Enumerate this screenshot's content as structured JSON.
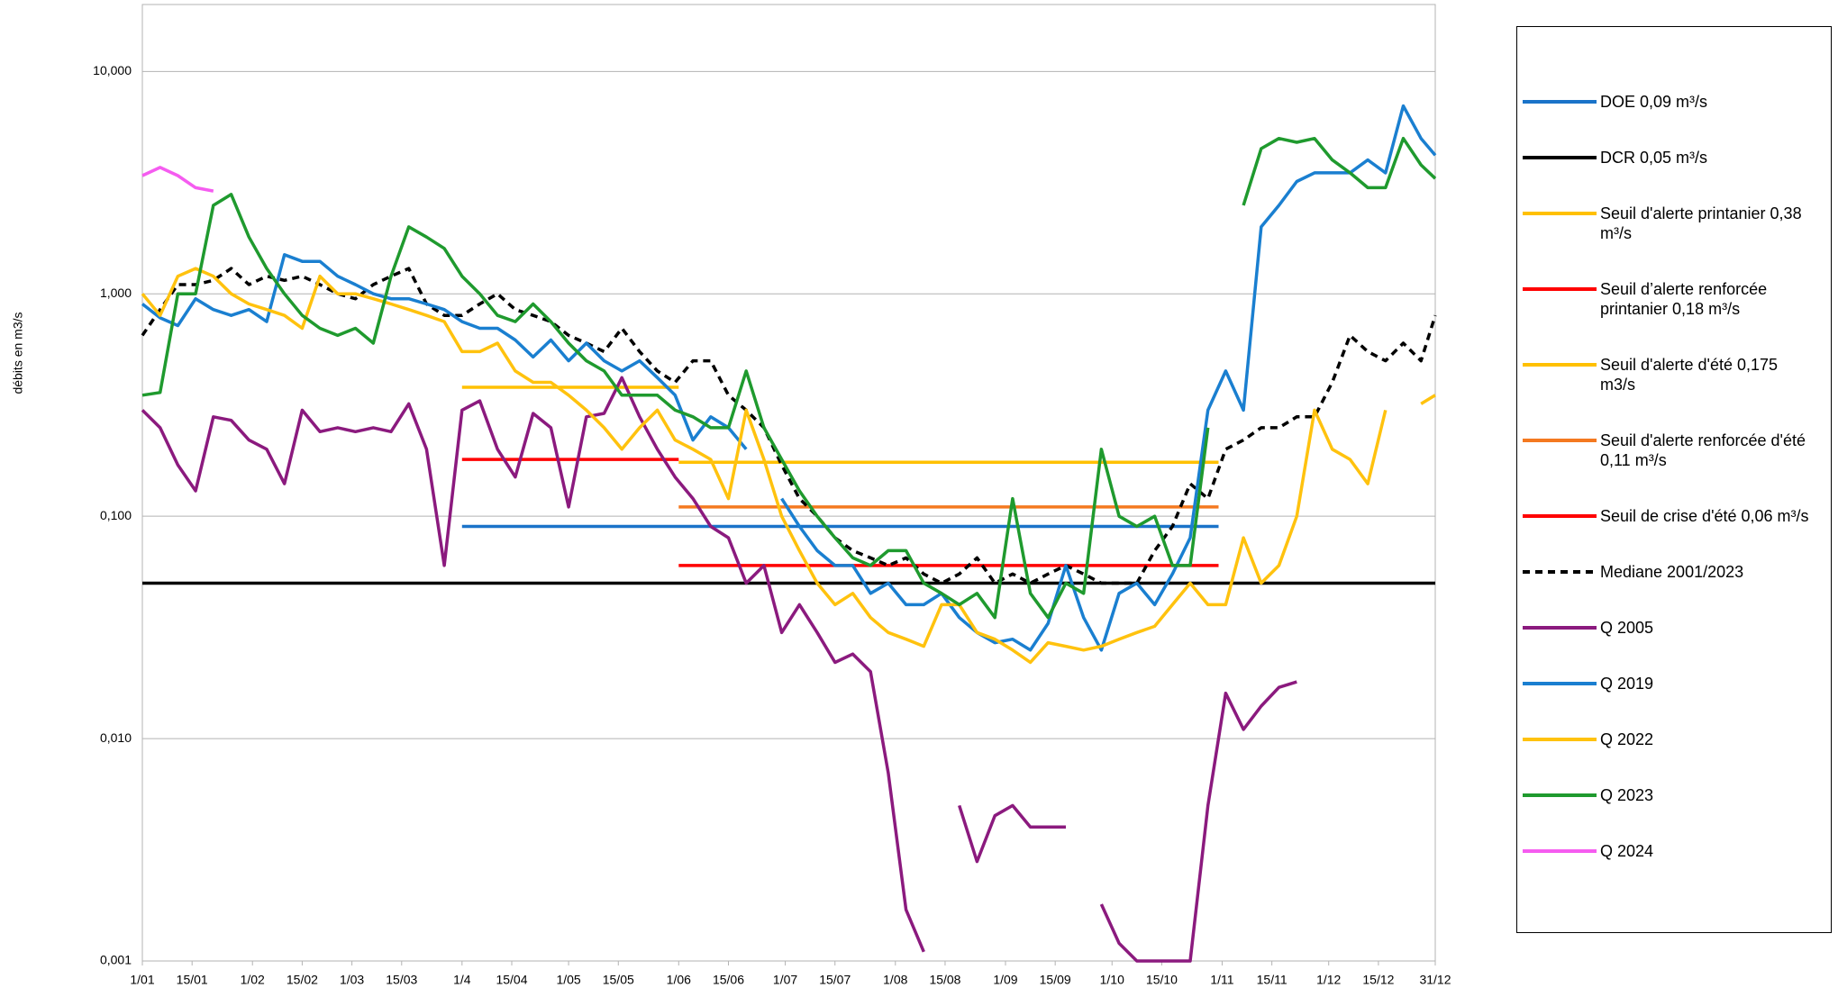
{
  "chart_data": {
    "type": "line",
    "y_label": "débits en m3/s",
    "log_scale": true,
    "grid": true,
    "ylim": [
      0.001,
      20
    ],
    "yticks": [
      {
        "value": 0.001,
        "label": "0,001"
      },
      {
        "value": 0.01,
        "label": "0,010"
      },
      {
        "value": 0.1,
        "label": "0,100"
      },
      {
        "value": 1,
        "label": "1,000"
      },
      {
        "value": 10,
        "label": "10,000"
      }
    ],
    "xlim": [
      1,
      365
    ],
    "xticks": [
      {
        "value": 1,
        "label": "1/01"
      },
      {
        "value": 15,
        "label": "15/01"
      },
      {
        "value": 32,
        "label": "1/02"
      },
      {
        "value": 46,
        "label": "15/02"
      },
      {
        "value": 60,
        "label": "1/03"
      },
      {
        "value": 74,
        "label": "15/03"
      },
      {
        "value": 91,
        "label": "1/4"
      },
      {
        "value": 105,
        "label": "15/04"
      },
      {
        "value": 121,
        "label": "1/05"
      },
      {
        "value": 135,
        "label": "15/05"
      },
      {
        "value": 152,
        "label": "1/06"
      },
      {
        "value": 166,
        "label": "15/06"
      },
      {
        "value": 182,
        "label": "1/07"
      },
      {
        "value": 196,
        "label": "15/07"
      },
      {
        "value": 213,
        "label": "1/08"
      },
      {
        "value": 227,
        "label": "15/08"
      },
      {
        "value": 244,
        "label": "1/09"
      },
      {
        "value": 258,
        "label": "15/09"
      },
      {
        "value": 274,
        "label": "1/10"
      },
      {
        "value": 288,
        "label": "15/10"
      },
      {
        "value": 305,
        "label": "1/11"
      },
      {
        "value": 319,
        "label": "15/11"
      },
      {
        "value": 335,
        "label": "1/12"
      },
      {
        "value": 349,
        "label": "15/12"
      },
      {
        "value": 365,
        "label": "31/12"
      }
    ],
    "x": [
      1,
      6,
      11,
      16,
      21,
      26,
      31,
      36,
      41,
      46,
      51,
      56,
      61,
      66,
      71,
      76,
      81,
      86,
      91,
      96,
      101,
      106,
      111,
      116,
      121,
      126,
      131,
      136,
      141,
      146,
      151,
      156,
      161,
      166,
      171,
      176,
      181,
      186,
      191,
      196,
      201,
      206,
      211,
      216,
      221,
      226,
      231,
      236,
      241,
      246,
      251,
      256,
      261,
      266,
      271,
      276,
      281,
      286,
      291,
      296,
      301,
      306,
      311,
      316,
      321,
      326,
      331,
      336,
      341,
      346,
      351,
      356,
      361,
      365
    ],
    "series": [
      {
        "name": "DOE 0,09 m³/s",
        "color": "#1a73c9",
        "x": [
          91,
          304
        ],
        "values": [
          0.09,
          0.09
        ]
      },
      {
        "name": "DCR 0,05 m³/s",
        "color": "#000000",
        "x": [
          1,
          365
        ],
        "values": [
          0.05,
          0.05
        ]
      },
      {
        "name": "Seuil d'alerte printanier 0,38 m³/s",
        "color": "#ffc000",
        "x": [
          91,
          152
        ],
        "values": [
          0.38,
          0.38
        ]
      },
      {
        "name": "Seuil d’alerte renforcée printanier 0,18 m³/s",
        "color": "#ff0000",
        "x": [
          91,
          152
        ],
        "values": [
          0.18,
          0.18
        ]
      },
      {
        "name": "Seuil d'alerte d'été 0,175 m3/s",
        "color": "#ffc000",
        "x": [
          152,
          304
        ],
        "values": [
          0.175,
          0.175
        ]
      },
      {
        "name": "Seuil d'alerte renforcée d'été 0,11 m³/s",
        "color": "#f47920",
        "x": [
          152,
          304
        ],
        "values": [
          0.11,
          0.11
        ]
      },
      {
        "name": "Seuil de crise d'été 0,06 m³/s",
        "color": "#ff0000",
        "x": [
          152,
          304
        ],
        "values": [
          0.06,
          0.06
        ]
      },
      {
        "name": "Mediane 2001/2023",
        "color": "#000000",
        "line_style": "dashed",
        "values": [
          0.65,
          0.85,
          1.1,
          1.1,
          1.15,
          1.3,
          1.1,
          1.2,
          1.15,
          1.2,
          1.1,
          1.0,
          0.95,
          1.1,
          1.2,
          1.3,
          0.9,
          0.8,
          0.8,
          0.9,
          1.0,
          0.85,
          0.8,
          0.75,
          0.65,
          0.6,
          0.55,
          0.7,
          0.55,
          0.45,
          0.4,
          0.5,
          0.5,
          0.35,
          0.3,
          0.25,
          0.17,
          0.12,
          0.1,
          0.08,
          0.07,
          0.065,
          0.06,
          0.065,
          0.055,
          0.05,
          0.055,
          0.065,
          0.05,
          0.055,
          0.05,
          0.055,
          0.06,
          0.055,
          0.05,
          0.05,
          0.05,
          0.07,
          0.09,
          0.14,
          0.12,
          0.2,
          0.22,
          0.25,
          0.25,
          0.28,
          0.28,
          0.4,
          0.65,
          0.55,
          0.5,
          0.6,
          0.5,
          0.8
        ]
      },
      {
        "name": "Q 2005",
        "color": "#8b1a7e",
        "values": [
          0.3,
          0.25,
          0.17,
          0.13,
          0.28,
          0.27,
          0.22,
          0.2,
          0.14,
          0.3,
          0.24,
          0.25,
          0.24,
          0.25,
          0.24,
          0.32,
          0.2,
          0.06,
          0.3,
          0.33,
          0.2,
          0.15,
          0.29,
          0.25,
          0.11,
          0.28,
          0.29,
          0.42,
          0.28,
          0.2,
          0.15,
          0.12,
          0.09,
          0.08,
          0.05,
          0.06,
          0.03,
          0.04,
          0.03,
          0.022,
          0.024,
          0.02,
          0.007,
          0.0017,
          0.0011,
          null,
          0.005,
          0.0028,
          0.0045,
          0.005,
          0.004,
          0.004,
          0.004,
          null,
          0.0018,
          0.0012,
          0.001,
          0.001,
          0.001,
          0.001,
          0.005,
          0.016,
          0.011,
          0.014,
          0.017,
          0.018,
          null,
          null,
          null,
          null,
          null,
          null,
          null,
          null
        ]
      },
      {
        "name": "Q 2019",
        "color": "#1a7fd0",
        "values": [
          0.9,
          0.78,
          0.72,
          0.95,
          0.85,
          0.8,
          0.85,
          0.75,
          1.5,
          1.4,
          1.4,
          1.2,
          1.1,
          1.0,
          0.95,
          0.95,
          0.9,
          0.85,
          0.75,
          0.7,
          0.7,
          0.62,
          0.52,
          0.62,
          0.5,
          0.6,
          0.5,
          0.45,
          0.5,
          0.42,
          0.35,
          0.22,
          0.28,
          0.25,
          0.2,
          null,
          0.12,
          0.09,
          0.07,
          0.06,
          0.06,
          0.045,
          0.05,
          0.04,
          0.04,
          0.045,
          0.035,
          0.03,
          0.027,
          0.028,
          0.025,
          0.033,
          0.06,
          0.035,
          0.025,
          0.045,
          0.05,
          0.04,
          0.055,
          0.08,
          0.3,
          0.45,
          0.3,
          2.0,
          2.5,
          3.2,
          3.5,
          3.5,
          3.5,
          4.0,
          3.5,
          7.0,
          5.0,
          4.2
        ]
      },
      {
        "name": "Q 2022",
        "color": "#ffc20e",
        "values": [
          1.0,
          0.8,
          1.2,
          1.3,
          1.2,
          1.0,
          0.9,
          0.85,
          0.8,
          0.7,
          1.2,
          1.0,
          1.0,
          0.95,
          0.9,
          0.85,
          0.8,
          0.75,
          0.55,
          0.55,
          0.6,
          0.45,
          0.4,
          0.4,
          0.35,
          0.3,
          0.25,
          0.2,
          0.25,
          0.3,
          0.22,
          0.2,
          0.18,
          0.12,
          0.3,
          0.18,
          0.1,
          0.07,
          0.05,
          0.04,
          0.045,
          0.035,
          0.03,
          0.028,
          0.026,
          0.04,
          0.04,
          0.03,
          0.028,
          0.025,
          0.022,
          0.027,
          0.026,
          0.025,
          0.026,
          0.028,
          0.03,
          0.032,
          0.04,
          0.05,
          0.04,
          0.04,
          0.08,
          0.05,
          0.06,
          0.1,
          0.3,
          0.2,
          0.18,
          0.14,
          0.3,
          null,
          0.32,
          0.35
        ]
      },
      {
        "name": "Q 2023",
        "color": "#1f9a2e",
        "values": [
          0.35,
          0.36,
          1.0,
          1.0,
          2.5,
          2.8,
          1.8,
          1.3,
          1.0,
          0.8,
          0.7,
          0.65,
          0.7,
          0.6,
          1.2,
          2.0,
          1.8,
          1.6,
          1.2,
          1.0,
          0.8,
          0.75,
          0.9,
          0.75,
          0.6,
          0.5,
          0.45,
          0.35,
          0.35,
          0.35,
          0.3,
          0.28,
          0.25,
          0.25,
          0.45,
          0.25,
          0.18,
          0.13,
          0.1,
          0.08,
          0.065,
          0.06,
          0.07,
          0.07,
          0.05,
          0.045,
          0.04,
          0.045,
          0.035,
          0.12,
          0.045,
          0.035,
          0.05,
          0.045,
          0.2,
          0.1,
          0.09,
          0.1,
          0.06,
          0.06,
          0.25,
          null,
          2.5,
          4.5,
          5.0,
          4.8,
          5.0,
          4.0,
          3.5,
          3.0,
          3.0,
          5.0,
          3.8,
          3.3
        ]
      },
      {
        "name": "Q 2024",
        "color": "#f55cf0",
        "x": [
          1,
          6,
          11,
          16,
          21
        ],
        "values": [
          3.4,
          3.7,
          3.4,
          3.0,
          2.9
        ]
      }
    ]
  }
}
